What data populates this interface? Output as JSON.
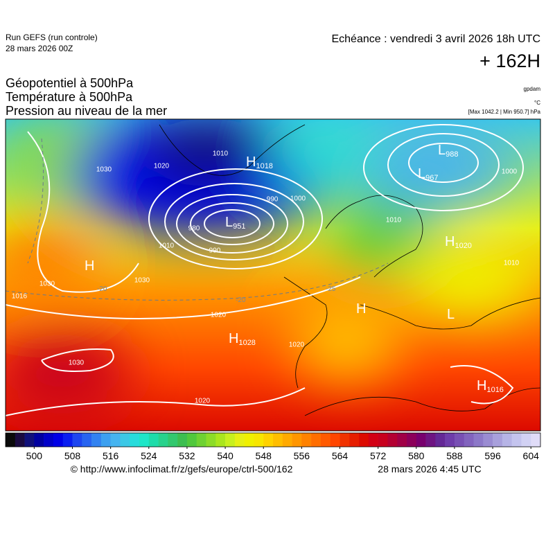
{
  "header": {
    "run": "Run GEFS (run controle)",
    "run_date": "28 mars 2026 00Z",
    "valid": "Echéance : vendredi 3 avril 2026 18h UTC",
    "lead": "+ 162H",
    "titles": [
      "Géopotentiel à 500hPa",
      "Température à 500hPa",
      "Pression au niveau de la mer"
    ],
    "units": [
      "gpdam",
      "°C",
      "[Max 1042.2 | Min 950.7] hPa"
    ]
  },
  "map": {
    "pressure_centers": [
      {
        "type": "H",
        "value": "1018"
      },
      {
        "type": "L",
        "value": "988"
      },
      {
        "type": "L",
        "value": "967"
      },
      {
        "type": "L",
        "value": "951"
      },
      {
        "type": "H",
        "value": "1020"
      },
      {
        "type": "H",
        "value": "1028"
      },
      {
        "type": "H",
        "value": "1016"
      },
      {
        "type": "H"
      },
      {
        "type": "H"
      },
      {
        "type": "L"
      }
    ],
    "isobar_labels": [
      "1010",
      "1030",
      "1020",
      "1000",
      "990",
      "980",
      "990",
      "1010",
      "1030",
      "1030",
      "1016",
      "1020",
      "1020",
      "1030",
      "1020",
      "1010",
      "1000",
      "1010"
    ],
    "temperature_labels": [
      "-20",
      "-20",
      "-25"
    ]
  },
  "colorbar": {
    "range": [
      494,
      606
    ],
    "ticks": [
      500,
      508,
      516,
      524,
      532,
      540,
      548,
      556,
      564,
      572,
      580,
      588,
      596,
      604
    ],
    "colors": [
      "#0a0a0a",
      "#1a0a40",
      "#10107a",
      "#0000a0",
      "#0000c8",
      "#0000e6",
      "#0a1ef0",
      "#1e46f0",
      "#2864f0",
      "#3282f0",
      "#3ca0f0",
      "#46b4f0",
      "#3cc8e6",
      "#28dcdc",
      "#1ee6c8",
      "#1edcaa",
      "#28d28c",
      "#32c86e",
      "#3cbe50",
      "#50c83c",
      "#6ed232",
      "#8cdc28",
      "#aae61e",
      "#c8f01e",
      "#e6f014",
      "#f0f000",
      "#f8e600",
      "#ffd200",
      "#ffbe00",
      "#ffaa00",
      "#ff9600",
      "#ff8200",
      "#ff6e00",
      "#ff5a00",
      "#ff4600",
      "#f03200",
      "#e61e00",
      "#dc0a00",
      "#d20014",
      "#c8001e",
      "#b40032",
      "#a00046",
      "#8c005a",
      "#78006e",
      "#6e1482",
      "#642896",
      "#6e3caa",
      "#7850b4",
      "#8264be",
      "#8c78c8",
      "#9a8cd2",
      "#a8a0dc",
      "#b6b4e6",
      "#c4c4ee",
      "#d2d2f4",
      "#e0dcf8"
    ]
  },
  "footer": {
    "url": "© http://www.infoclimat.fr/z/gefs/europe/ctrl-500/162",
    "issued": "28 mars 2026  4:45 UTC"
  }
}
